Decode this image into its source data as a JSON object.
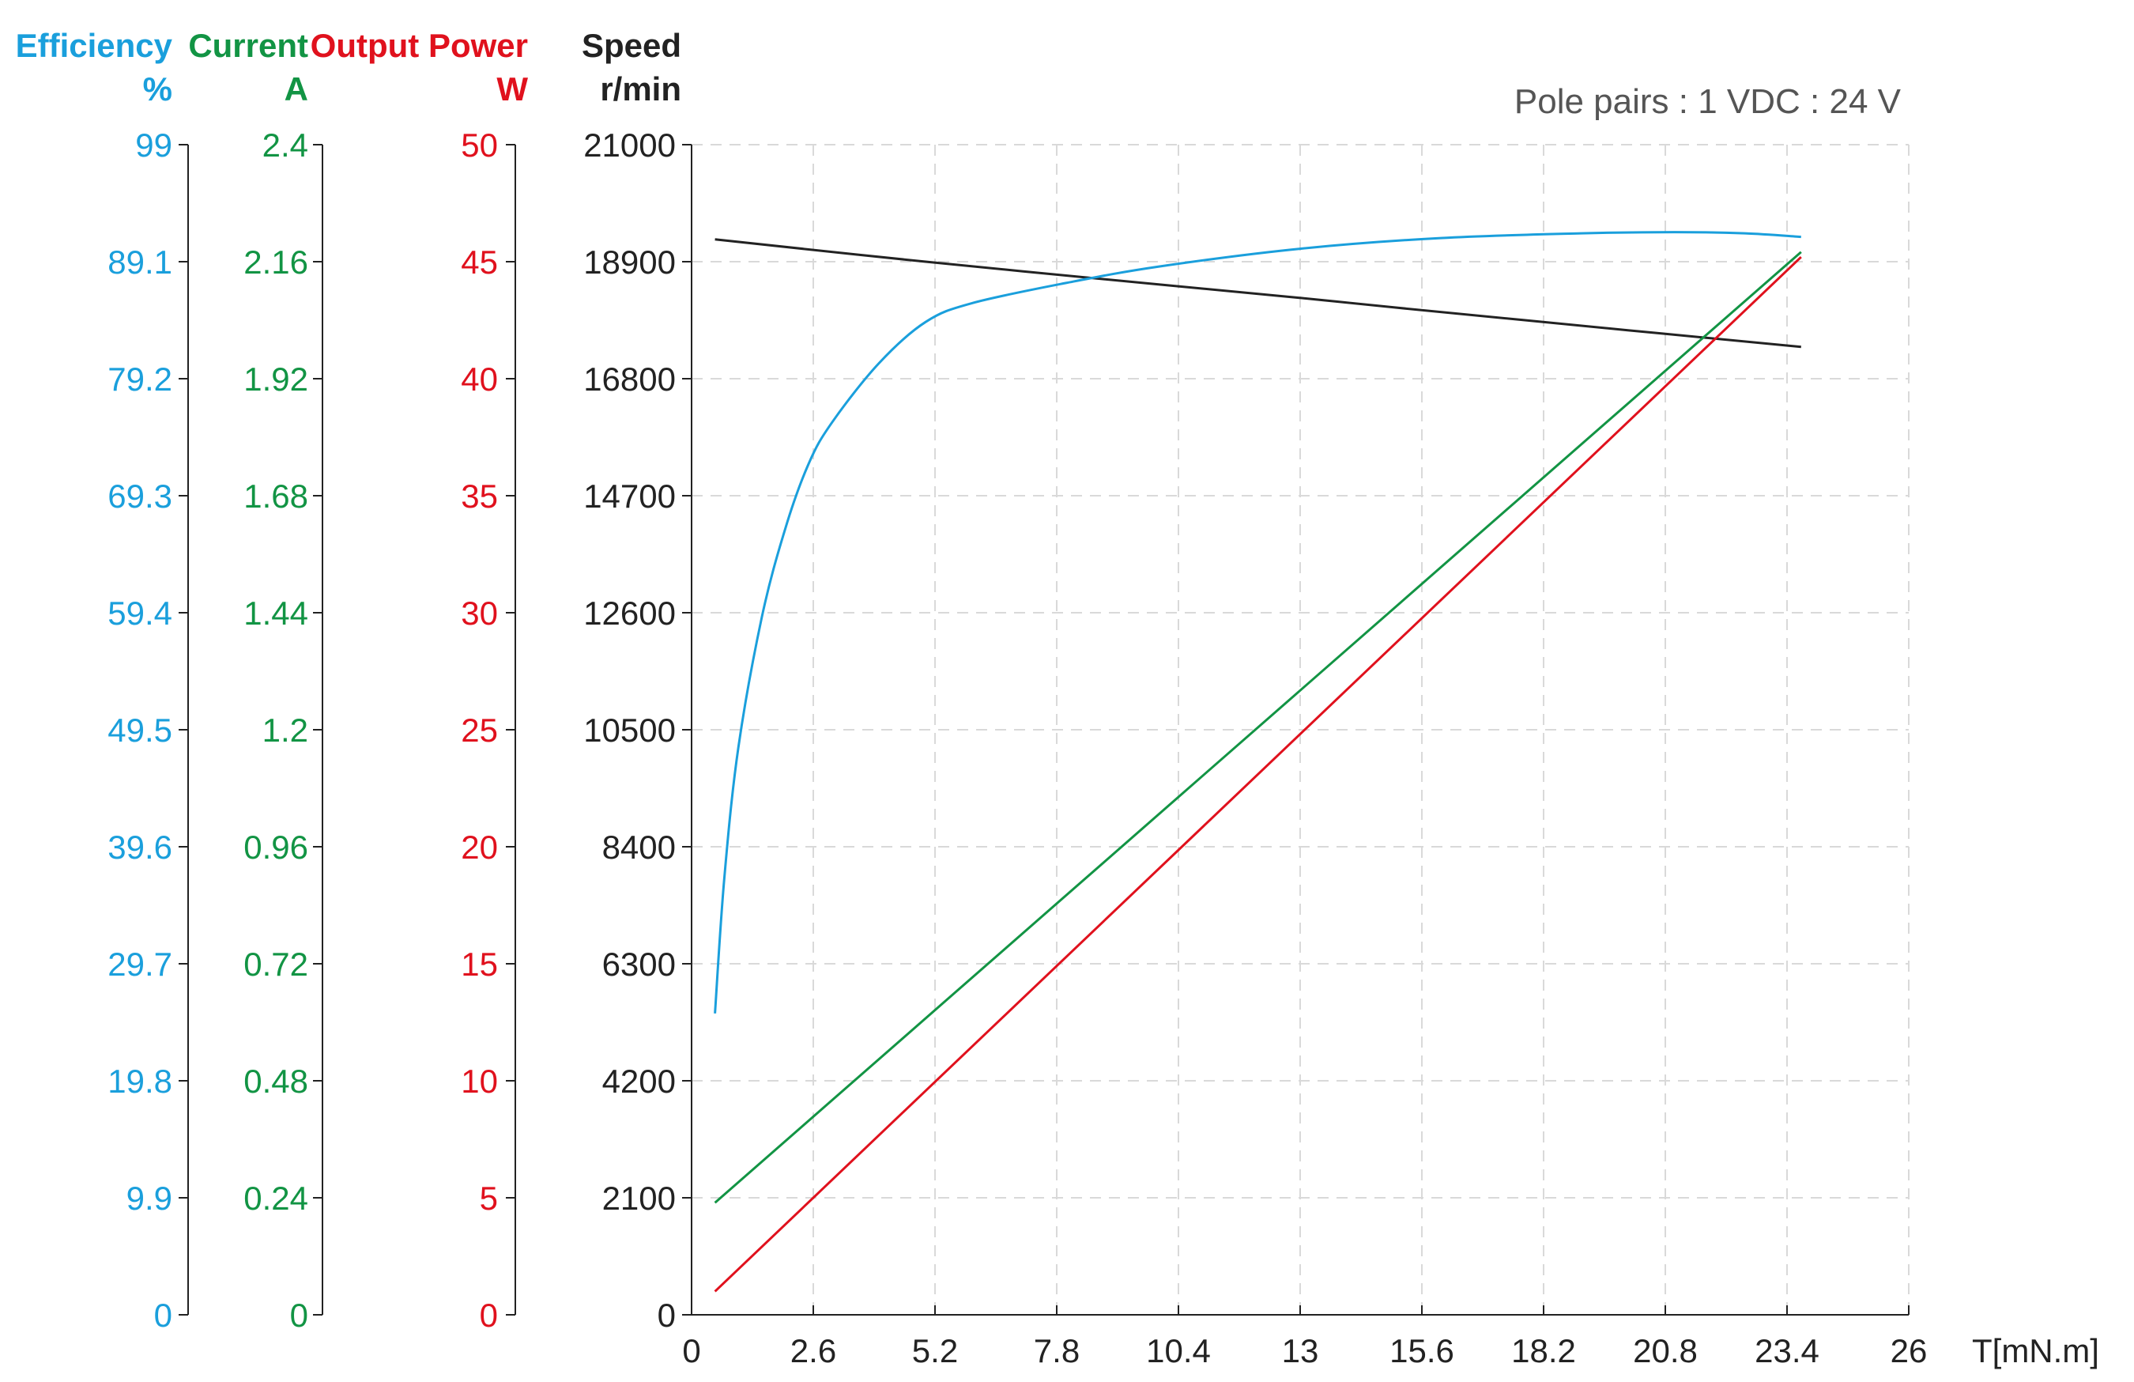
{
  "colors": {
    "efficiency": "#1a9fdc",
    "current": "#129444",
    "power": "#e0111d",
    "speed": "#222222",
    "grid": "#d9d9d9",
    "note": "#555555"
  },
  "note": "Pole pairs : 1   VDC : 24 V",
  "chart_data": {
    "type": "line",
    "title": "",
    "xlabel": "T[mN.m]",
    "xlim": [
      0,
      26
    ],
    "x_ticks": [
      "0",
      "2.6",
      "5.2",
      "7.8",
      "10.4",
      "13",
      "15.6",
      "18.2",
      "20.8",
      "23.4",
      "26"
    ],
    "grid": true,
    "axes": [
      {
        "id": "efficiency",
        "title": "Efficiency",
        "unit": "%",
        "color": "#1a9fdc",
        "range": [
          0,
          99
        ],
        "ticks": [
          "0",
          "9.9",
          "19.8",
          "29.7",
          "39.6",
          "49.5",
          "59.4",
          "69.3",
          "79.2",
          "89.1",
          "99"
        ]
      },
      {
        "id": "current",
        "title": "Current",
        "unit": "A",
        "color": "#129444",
        "range": [
          0,
          2.4
        ],
        "ticks": [
          "0",
          "0.24",
          "0.48",
          "0.72",
          "0.96",
          "1.2",
          "1.44",
          "1.68",
          "1.92",
          "2.16",
          "2.4"
        ]
      },
      {
        "id": "power",
        "title": "Output Power",
        "unit": "W",
        "color": "#e0111d",
        "range": [
          0,
          50
        ],
        "ticks": [
          "0",
          "5",
          "10",
          "15",
          "20",
          "25",
          "30",
          "35",
          "40",
          "45",
          "50"
        ]
      },
      {
        "id": "speed",
        "title": "Speed",
        "unit": "r/min",
        "color": "#222222",
        "range": [
          0,
          21000
        ],
        "ticks": [
          "0",
          "2100",
          "4200",
          "6300",
          "8400",
          "10500",
          "12600",
          "14700",
          "16800",
          "18900",
          "21000"
        ]
      }
    ],
    "series": [
      {
        "axis": "speed",
        "x": [
          0.5,
          5,
          10,
          13,
          15,
          20,
          23.7
        ],
        "y": [
          19300,
          18900,
          18490,
          18250,
          18080,
          17670,
          17370
        ]
      },
      {
        "axis": "efficiency",
        "x": [
          0.5,
          0.7,
          1,
          1.5,
          2,
          2.5,
          3,
          4,
          5,
          6,
          8,
          10,
          13,
          16,
          19,
          21,
          22.5,
          23.7
        ],
        "y": [
          25.5,
          37,
          48,
          59,
          66.5,
          72,
          75.5,
          80.5,
          84,
          85.6,
          87.3,
          88.7,
          90.2,
          91.1,
          91.5,
          91.6,
          91.5,
          91.2
        ]
      },
      {
        "axis": "current",
        "x": [
          0.5,
          23.7
        ],
        "y": [
          0.23,
          2.18
        ]
      },
      {
        "axis": "power",
        "x": [
          0.5,
          23.7
        ],
        "y": [
          1.0,
          45.2
        ]
      }
    ]
  }
}
